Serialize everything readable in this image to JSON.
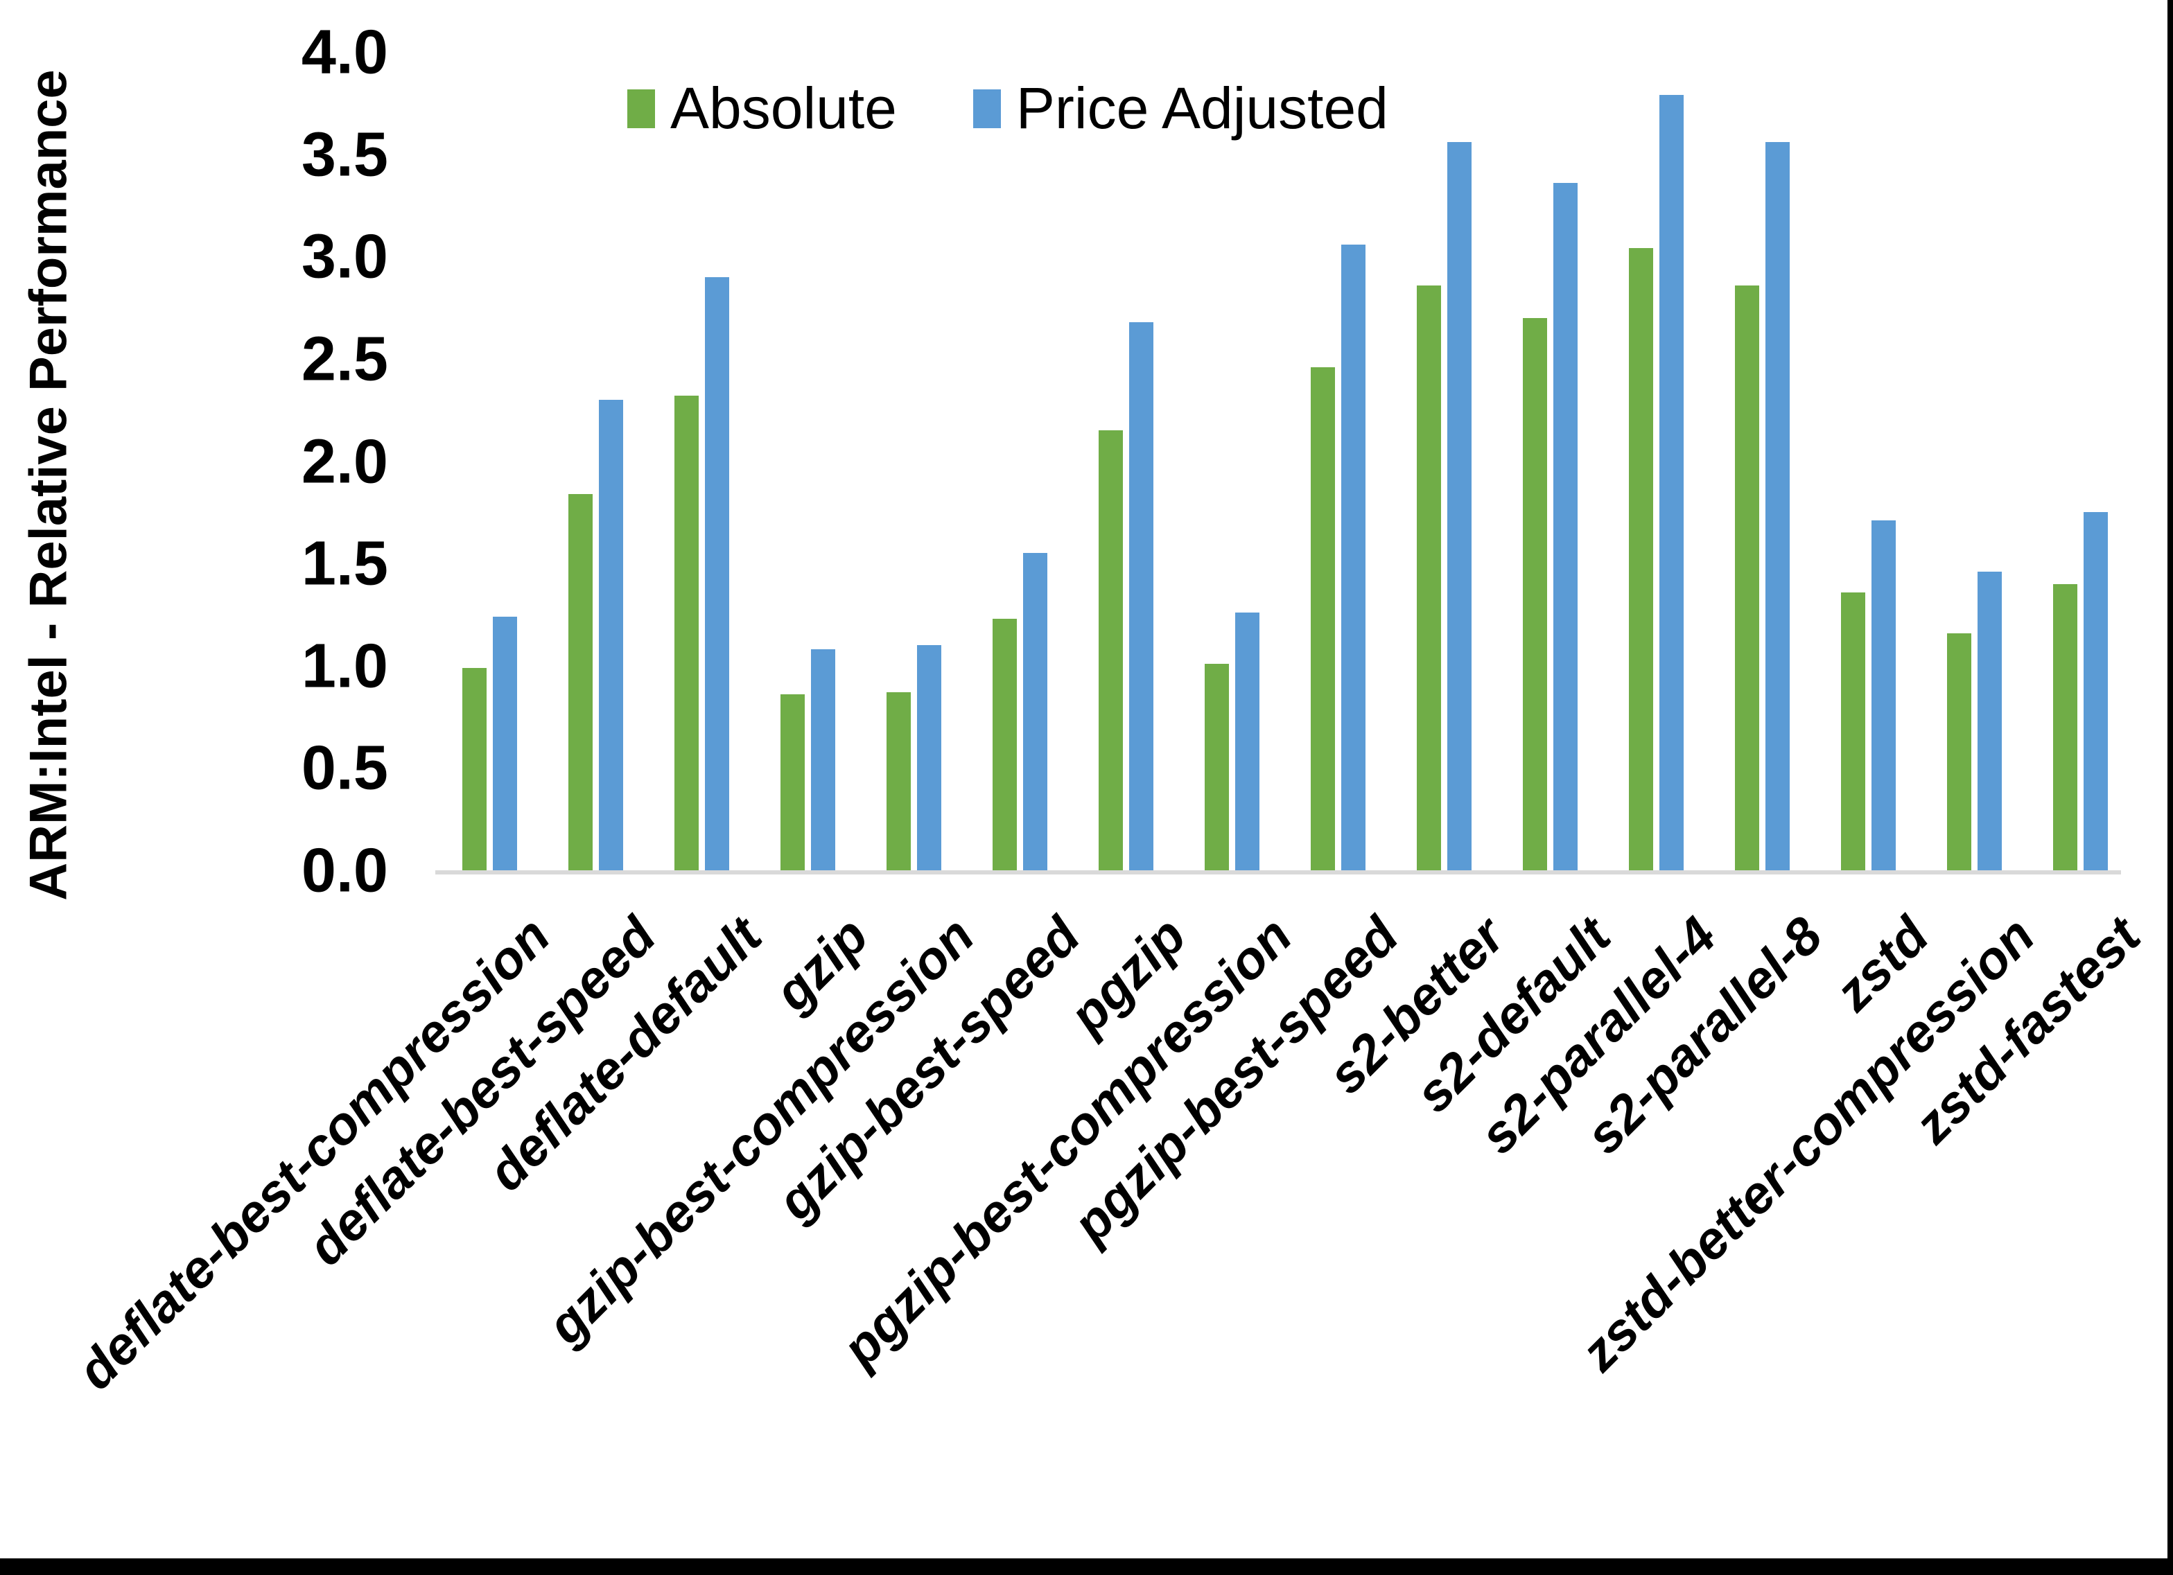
{
  "legend": {
    "items": [
      {
        "label": "Absolute",
        "color": "#70AD47"
      },
      {
        "label": "Price Adjusted",
        "color": "#5B9BD5"
      }
    ]
  },
  "y_axis": {
    "title": "ARM:Intel - Relative Performance",
    "tick_labels": [
      "0.0",
      "0.5",
      "1.0",
      "1.5",
      "2.0",
      "2.5",
      "3.0",
      "3.5",
      "4.0"
    ]
  },
  "chart_data": {
    "type": "bar",
    "title": "",
    "xlabel": "",
    "ylabel": "ARM:Intel - Relative Performance",
    "ylim": [
      0.0,
      4.0
    ],
    "ytick_step": 0.5,
    "grid": false,
    "legend_position": "top-center",
    "axis_line_color": "#D9D9D9",
    "categories": [
      "deflate-best-compression",
      "deflate-best-speed",
      "deflate-default",
      "gzip",
      "gzip-best-compression",
      "gzip-best-speed",
      "pgzip",
      "pgzip-best-compression",
      "pgzip-best-speed",
      "s2-better",
      "s2-default",
      "s2-parallel-4",
      "s2-parallel-8",
      "zstd",
      "zstd-better-compression",
      "zstd-fastest"
    ],
    "series": [
      {
        "name": "Absolute",
        "color": "#70AD47",
        "values": [
          1.0,
          1.85,
          2.33,
          0.87,
          0.88,
          1.24,
          2.16,
          1.02,
          2.47,
          2.87,
          2.71,
          3.05,
          2.87,
          1.37,
          1.17,
          1.41
        ]
      },
      {
        "name": "Price Adjusted",
        "color": "#5B9BD5",
        "values": [
          1.25,
          2.31,
          2.91,
          1.09,
          1.11,
          1.56,
          2.69,
          1.27,
          3.07,
          3.57,
          3.37,
          3.8,
          3.57,
          1.72,
          1.47,
          1.76
        ]
      }
    ]
  }
}
